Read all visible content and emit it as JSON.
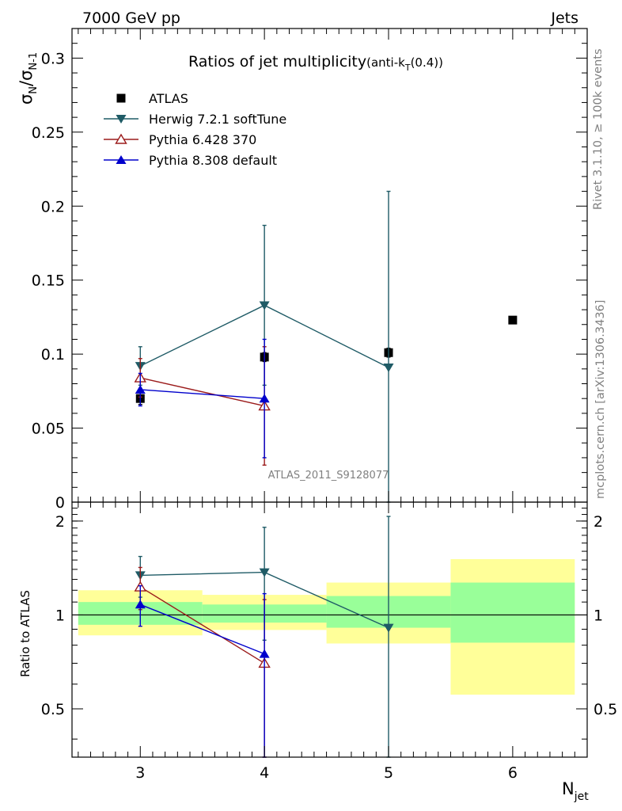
{
  "header": {
    "left": "7000 GeV pp",
    "right": "Jets"
  },
  "side": {
    "rivet": "Rivet 3.1.10, ≥ 100k events",
    "mcplots": "mcplots.cern.ch [arXiv:1306.3436]"
  },
  "chart_data": [
    {
      "type": "scatter",
      "title": "Ratios of jet multiplicity",
      "title_suffix": "(anti-k",
      "title_sub": "T",
      "title_tail": "(0.4))",
      "ylabel": "σ",
      "ylabel_sub1": "N",
      "ylabel_mid": "/σ",
      "ylabel_sub2": "N-1",
      "analysis_tag": "ATLAS_2011_S9128077",
      "xlim": [
        2.45,
        6.6
      ],
      "ylim": [
        0,
        0.32
      ],
      "y_ticks": [
        0,
        0.05,
        0.1,
        0.15,
        0.2,
        0.25,
        0.3
      ],
      "y_tick_labels": [
        "0",
        "0.05",
        "0.1",
        "0.15",
        "0.2",
        "0.25",
        "0.3"
      ],
      "legend_position": "top-left",
      "series": [
        {
          "name": "ATLAS",
          "color": "#000000",
          "marker": "square",
          "x": [
            3,
            4,
            5,
            6
          ],
          "y": [
            0.07,
            0.098,
            0.101,
            0.123
          ],
          "err": [
            0.004,
            0.003,
            0.003,
            0.002
          ]
        },
        {
          "name": "Herwig 7.2.1 softTune",
          "color": "#1f5b66",
          "marker": "triangle-down",
          "x": [
            3,
            4,
            5
          ],
          "y": [
            0.092,
            0.133,
            0.091
          ],
          "err": [
            0.013,
            0.054,
            0.119
          ]
        },
        {
          "name": "Pythia 6.428 370",
          "color": "#9b1b1b",
          "marker": "triangle-up-open",
          "x": [
            3,
            4
          ],
          "y": [
            0.084,
            0.065
          ],
          "err": [
            0.013,
            0.04
          ]
        },
        {
          "name": "Pythia 8.308 default",
          "color": "#0000cc",
          "marker": "triangle-up",
          "x": [
            3,
            4
          ],
          "y": [
            0.076,
            0.07
          ],
          "err": [
            0.011,
            0.04
          ]
        }
      ]
    },
    {
      "type": "scatter",
      "ylabel": "Ratio to ATLAS",
      "xlabel": "N",
      "xlabel_sub": "jet",
      "x_ticks": [
        3,
        4,
        5,
        6
      ],
      "x_tick_labels": [
        "3",
        "4",
        "5",
        "6"
      ],
      "ylim": [
        0.35,
        2.3
      ],
      "y_ticks": [
        0.5,
        1,
        2
      ],
      "y_tick_labels": [
        "0.5",
        "1",
        "2"
      ],
      "bands": [
        {
          "x0": 2.5,
          "x1": 3.5,
          "inner": [
            0.93,
            1.1
          ],
          "outer": [
            0.86,
            1.2
          ]
        },
        {
          "x0": 3.5,
          "x1": 4.5,
          "inner": [
            0.945,
            1.08
          ],
          "outer": [
            0.895,
            1.16
          ]
        },
        {
          "x0": 4.5,
          "x1": 5.5,
          "inner": [
            0.91,
            1.15
          ],
          "outer": [
            0.81,
            1.27
          ]
        },
        {
          "x0": 5.5,
          "x1": 6.5,
          "inner": [
            0.815,
            1.27
          ],
          "outer": [
            0.555,
            1.51
          ]
        }
      ],
      "series": [
        {
          "name": "Herwig 7.2.1 softTune",
          "color": "#1f5b66",
          "marker": "triangle-down",
          "x": [
            3,
            4,
            5
          ],
          "y": [
            1.34,
            1.37,
            0.91
          ],
          "err": [
            0.2,
            0.54,
            1.16
          ]
        },
        {
          "name": "Pythia 6.428 370",
          "color": "#9b1b1b",
          "marker": "triangle-up-open",
          "x": [
            3,
            4
          ],
          "y": [
            1.23,
            0.7
          ],
          "err": [
            0.19,
            0.42
          ]
        },
        {
          "name": "Pythia 8.308 default",
          "color": "#0000cc",
          "marker": "triangle-up",
          "x": [
            3,
            4
          ],
          "y": [
            1.08,
            0.75
          ],
          "err": [
            0.16,
            0.42
          ]
        }
      ]
    }
  ]
}
